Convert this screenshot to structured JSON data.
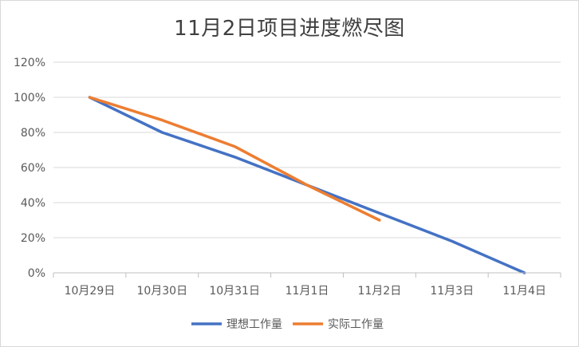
{
  "chart_data": {
    "type": "line",
    "title": "11月2日项目进度燃尽图",
    "xlabel": "",
    "ylabel": "",
    "categories": [
      "10月29日",
      "10月30日",
      "10月31日",
      "11月1日",
      "11月2日",
      "11月3日",
      "11月4日"
    ],
    "ylim": [
      0,
      120
    ],
    "yticks": [
      "0%",
      "20%",
      "40%",
      "60%",
      "80%",
      "100%",
      "120%"
    ],
    "grid": true,
    "legend_position": "bottom",
    "series": [
      {
        "name": "理想工作量",
        "color": "#4472c4",
        "values": [
          100,
          80,
          66,
          50,
          34,
          18,
          0
        ]
      },
      {
        "name": "实际工作量",
        "color": "#ed7d31",
        "values": [
          100,
          87,
          72,
          50,
          30,
          null,
          null
        ]
      }
    ]
  }
}
